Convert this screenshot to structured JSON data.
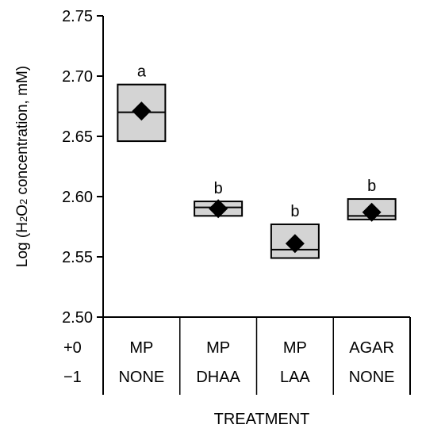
{
  "chart_data": {
    "type": "box",
    "title": "",
    "ylabel": "Log (H2O2 concentration, mM)",
    "xlabel": "TREATMENT",
    "ylim": [
      2.5,
      2.75
    ],
    "yticks": [
      2.5,
      2.55,
      2.6,
      2.65,
      2.7,
      2.75
    ],
    "ytick_labels": [
      "2.50",
      "2.55",
      "2.60",
      "2.65",
      "2.70",
      "2.75"
    ],
    "row_labels": [
      "+0",
      "−1"
    ],
    "categories": [
      {
        "line1": "MP",
        "line2": "NONE"
      },
      {
        "line1": "MP",
        "line2": "DHAA"
      },
      {
        "line1": "MP",
        "line2": "LAA"
      },
      {
        "line1": "AGAR",
        "line2": "NONE"
      }
    ],
    "boxes": [
      {
        "low": 2.646,
        "high": 2.693,
        "median": 2.67,
        "mean": 2.671,
        "letter": "a"
      },
      {
        "low": 2.584,
        "high": 2.596,
        "median": 2.591,
        "mean": 2.59,
        "letter": "b"
      },
      {
        "low": 2.549,
        "high": 2.577,
        "median": 2.556,
        "mean": 2.561,
        "letter": "b"
      },
      {
        "low": 2.581,
        "high": 2.598,
        "median": 2.584,
        "mean": 2.587,
        "letter": "b"
      }
    ],
    "grid": false,
    "legend": "none",
    "colors": {
      "box_fill": "#d4d4d4",
      "line": "#000000",
      "marker": "#000000"
    }
  }
}
